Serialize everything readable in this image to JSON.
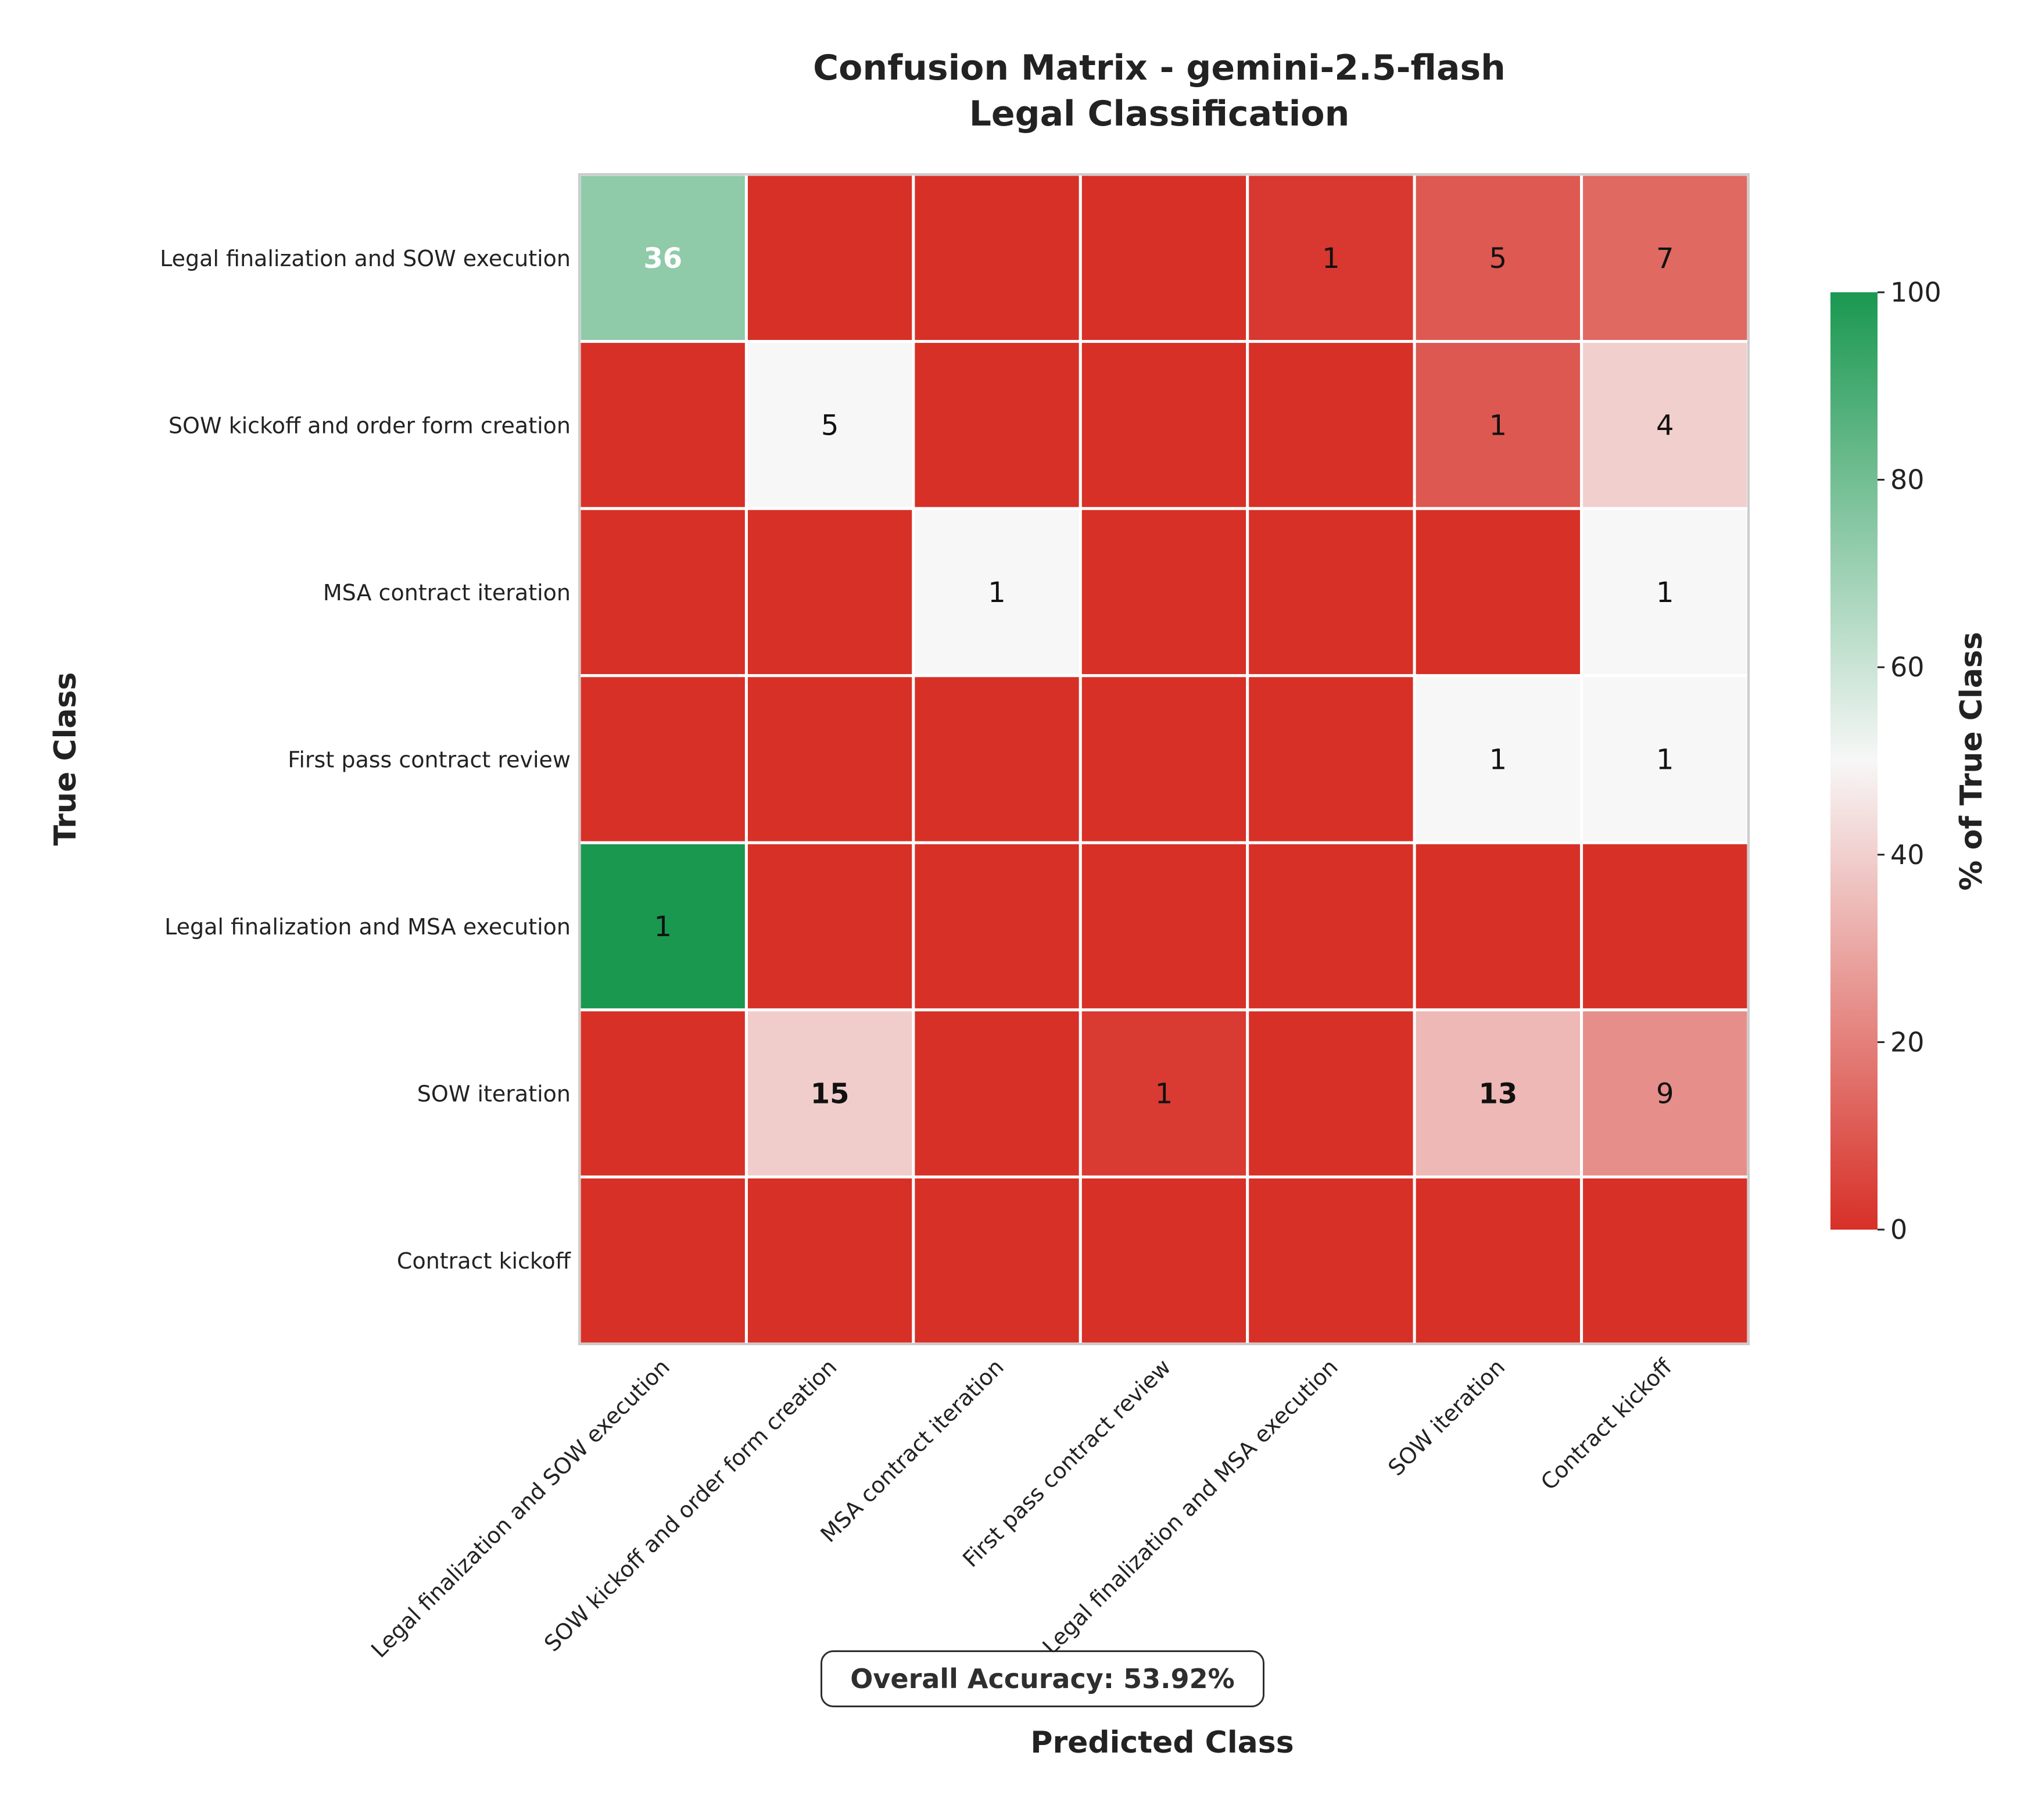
{
  "title_line1": "Confusion Matrix - gemini-2.5-flash",
  "title_line2": "Legal Classification",
  "xlabel": "Predicted Class",
  "ylabel": "True Class",
  "colorbar_label": "% of True Class",
  "accuracy_text": "Overall Accuracy: 53.92%",
  "colors": {
    "low": "#d73027",
    "mid": "#f7f7f7",
    "high": "#1a9850"
  },
  "chart_data": {
    "type": "heatmap",
    "title": "Confusion Matrix - gemini-2.5-flash\nLegal Classification",
    "xlabel": "Predicted Class",
    "ylabel": "True Class",
    "x_categories": [
      "Legal finalization and SOW execution",
      "SOW kickoff and order form creation",
      "MSA contract iteration",
      "First pass contract review",
      "Legal finalization and MSA execution",
      "SOW iteration",
      "Contract kickoff"
    ],
    "y_categories": [
      "Legal finalization and SOW execution",
      "SOW kickoff and order form creation",
      "MSA contract iteration",
      "First pass contract review",
      "Legal finalization and MSA execution",
      "SOW iteration",
      "Contract kickoff"
    ],
    "counts": [
      [
        36,
        0,
        0,
        0,
        1,
        5,
        7
      ],
      [
        0,
        5,
        0,
        0,
        0,
        1,
        4
      ],
      [
        0,
        0,
        1,
        0,
        0,
        0,
        1
      ],
      [
        0,
        0,
        0,
        0,
        0,
        1,
        1
      ],
      [
        1,
        0,
        0,
        0,
        0,
        0,
        0
      ],
      [
        0,
        15,
        0,
        1,
        0,
        13,
        9
      ],
      [
        0,
        0,
        0,
        0,
        0,
        0,
        0
      ]
    ],
    "colorbar": {
      "label": "% of True Class",
      "range": [
        0,
        100
      ],
      "ticks": [
        0,
        20,
        40,
        60,
        80,
        100
      ]
    }
  }
}
